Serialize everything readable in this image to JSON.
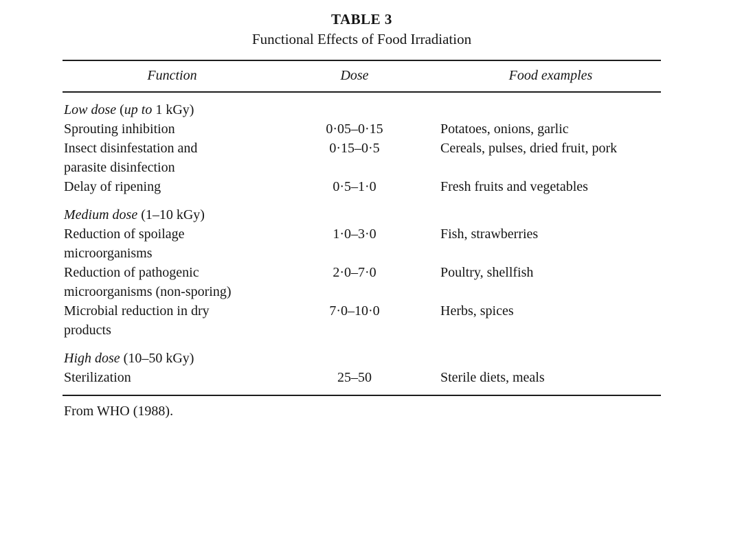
{
  "page": {
    "title": "TABLE 3",
    "subtitle": "Functional Effects of Food Irradiation",
    "footnote": "From WHO (1988)."
  },
  "columns": {
    "function": "Function",
    "dose": "Dose",
    "foods": "Food examples"
  },
  "sections": [
    {
      "name": "low-dose",
      "header": [
        {
          "text": "Low dose",
          "italic": true
        },
        {
          "text": " (",
          "italic": false
        },
        {
          "text": "up to",
          "italic": true
        },
        {
          "text": " 1 kGy)",
          "italic": false
        }
      ],
      "rows": [
        {
          "function_lines": [
            "Sprouting inhibition"
          ],
          "dose": "0·05–0·15",
          "foods": "Potatoes, onions, garlic"
        },
        {
          "function_lines": [
            "Insect disinfestation and",
            "parasite disinfection"
          ],
          "dose": "0·15–0·5",
          "foods": "Cereals, pulses, dried fruit, pork"
        },
        {
          "function_lines": [
            "Delay of ripening"
          ],
          "dose": "0·5–1·0",
          "foods": "Fresh fruits and vegetables"
        }
      ]
    },
    {
      "name": "medium-dose",
      "header": [
        {
          "text": "Medium dose",
          "italic": true
        },
        {
          "text": " (1–10 kGy)",
          "italic": false
        }
      ],
      "rows": [
        {
          "function_lines": [
            "Reduction of spoilage",
            "microorganisms"
          ],
          "dose": "1·0–3·0",
          "foods": "Fish, strawberries"
        },
        {
          "function_lines": [
            "Reduction of pathogenic",
            "microorganisms (non-sporing)"
          ],
          "dose": "2·0–7·0",
          "foods": "Poultry, shellfish"
        },
        {
          "function_lines": [
            "Microbial reduction in dry",
            "products"
          ],
          "dose": "7·0–10·0",
          "foods": "Herbs, spices"
        }
      ]
    },
    {
      "name": "high-dose",
      "header": [
        {
          "text": "High dose",
          "italic": true
        },
        {
          "text": " (10–50 kGy)",
          "italic": false
        }
      ],
      "rows": [
        {
          "function_lines": [
            "Sterilization"
          ],
          "dose": "25–50",
          "foods": "Sterile diets, meals"
        }
      ]
    }
  ]
}
